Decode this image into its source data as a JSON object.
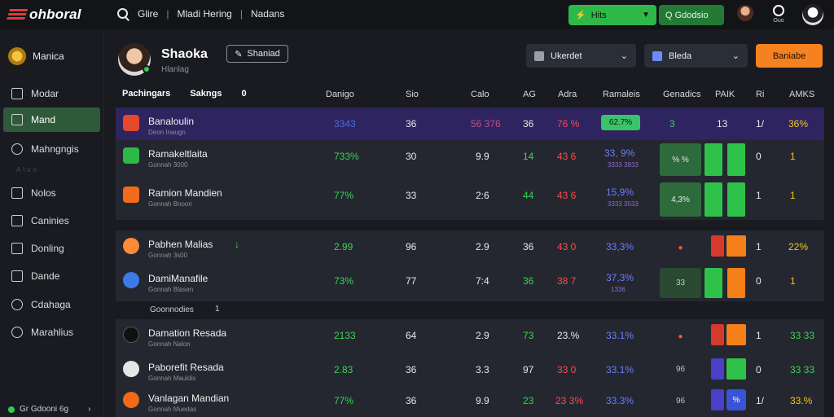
{
  "topbar": {
    "logo": "ohboral",
    "search_items": [
      "Glire",
      "Mladi Hering",
      "Nadans"
    ],
    "btn_primary": "Hits",
    "btn_secondary": "Q Gdodsio"
  },
  "sidebar": {
    "user": "Manica",
    "items": [
      {
        "label": "Modar",
        "icon": "document-icon"
      },
      {
        "label": "Mand",
        "icon": "map-icon",
        "active": true
      },
      {
        "label": "Mahngngis",
        "icon": "search-icon"
      },
      {
        "label": "Nolos",
        "icon": "shield-icon"
      },
      {
        "label": "Caninies",
        "icon": "tools-icon"
      },
      {
        "label": "Donling",
        "icon": "edit-icon"
      },
      {
        "label": "Dande",
        "icon": "screen-icon"
      },
      {
        "label": "Cdahaga",
        "icon": "globe-icon"
      },
      {
        "label": "Marahlius",
        "icon": "database-icon"
      }
    ],
    "faint": "Aluo",
    "footer": "Gr Gdooni 6g"
  },
  "profile": {
    "name": "Shaoka",
    "sub": "Hlanlag",
    "edit_btn": "Shaniad"
  },
  "controls": {
    "select1": "Ukerdet",
    "select2": "Bleda",
    "orange_btn": "Baniabe"
  },
  "tabs": [
    "Pachingars",
    "Sakngs",
    "0"
  ],
  "columns": [
    "Danigo",
    "Sio",
    "Calo",
    "AG",
    "Adra",
    "Ramaleis",
    "Genadics",
    "PAIK",
    "Ri",
    "AMKS"
  ],
  "rows": [
    {
      "name": "Banaloulin",
      "sub": "Deon Inaugn",
      "values": [
        "3343",
        "36",
        "56 376",
        "36",
        "76 %",
        "62.7%",
        "3",
        "13",
        "1/",
        "36%"
      ],
      "extra": [
        "",
        "",
        ""
      ]
    },
    {
      "name": "Ramakeltlaita",
      "sub": "Gonnah 3000",
      "values": [
        "733%",
        "30",
        "9.9",
        "14",
        "43 6",
        "33, 9%",
        "% %",
        "",
        "",
        ""
      ],
      "extra": [
        "3333 3833",
        "0",
        "1"
      ]
    },
    {
      "name": "Ramion Mandien",
      "sub": "Gonnah Bnoon",
      "values": [
        "77%",
        "33",
        "2:6",
        "44",
        "43 6",
        "15,9%",
        "4,3%",
        "",
        "",
        ""
      ],
      "extra": [
        "3333 3533",
        "1",
        "1"
      ]
    },
    {
      "name": "Pabhen Malias",
      "sub": "Gonnah 3s00",
      "values": [
        "2.99",
        "96",
        "2.9",
        "36",
        "43 0",
        "33,3%",
        "",
        "",
        "1",
        "22%"
      ],
      "extra": [
        "",
        "",
        ""
      ]
    },
    {
      "name": "DamiManafile",
      "sub": "Gonnah Blasen",
      "values": [
        "73%",
        "77",
        "7:4",
        "36",
        "38 7",
        "37,3%",
        "33",
        "",
        "",
        ""
      ],
      "extra": [
        "1336",
        "0",
        "1"
      ]
    },
    {
      "name": "Damation Resada",
      "sub": "Gonnah Nalon",
      "values": [
        "2133",
        "64",
        "2.9",
        "73",
        "23.%",
        "33.1%",
        "",
        "",
        "1",
        "33 33"
      ],
      "extra": [
        "",
        "",
        ""
      ]
    },
    {
      "name": "Paborefit Resada",
      "sub": "Gonnah Mauldis",
      "values": [
        "2.83",
        "36",
        "3.3",
        "97",
        "33 0",
        "33.1%",
        "96",
        "",
        "0",
        "33 33"
      ],
      "extra": [
        "",
        "",
        ""
      ]
    },
    {
      "name": "Vanlagan Mandian",
      "sub": "Gonnah Muedas",
      "values": [
        "77%",
        "36",
        "9.9",
        "23",
        "23 3%",
        "33.3%",
        "96",
        "%",
        "1/",
        "33.%"
      ],
      "extra": [
        "",
        "",
        ""
      ]
    }
  ],
  "section_label": "Goonnodies",
  "section_count": "1",
  "colors": {
    "accent_green": "#2fb84a",
    "accent_orange": "#f58220",
    "highlight": "#2e2460"
  }
}
